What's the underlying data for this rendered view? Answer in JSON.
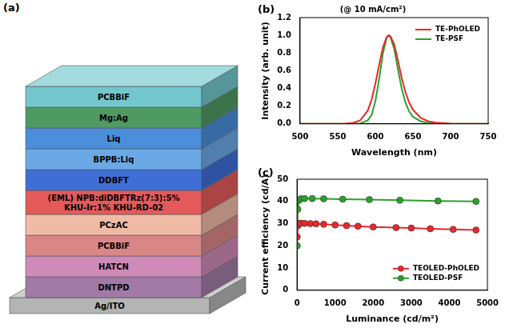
{
  "diagram": {
    "label": "(a)",
    "layers": [
      "PCBBiF",
      "Mg:Ag",
      "Liq",
      "BPPB:Liq",
      "DDBFT",
      "(EML) NPB:diDBFTRz(7:3):5% KHU-Ir:1% KHU-RD-02",
      "PCzAC",
      "PCBBiF",
      "HATCN",
      "DNTPD",
      "Ag/ITO"
    ]
  },
  "chart_data": [
    {
      "label": "(b)",
      "type": "line",
      "title": "(@ 10 mA/cm²)",
      "x_label": "Wavelength (nm)",
      "y_label": "Intensity (arb. unit)",
      "x": [
        500,
        540,
        560,
        570,
        580,
        590,
        595,
        600,
        605,
        610,
        615,
        618,
        620,
        625,
        630,
        635,
        640,
        645,
        650,
        660,
        670,
        680,
        700,
        750
      ],
      "series": [
        {
          "name": "TE-PhOLED",
          "color": "#e8282b",
          "values": [
            0,
            0,
            0.003,
            0.01,
            0.04,
            0.15,
            0.27,
            0.45,
            0.66,
            0.86,
            0.98,
            1.0,
            0.99,
            0.9,
            0.72,
            0.52,
            0.36,
            0.24,
            0.16,
            0.07,
            0.03,
            0.015,
            0.003,
            0
          ]
        },
        {
          "name": "TE-PSF",
          "color": "#2ca02c",
          "values": [
            0,
            0,
            0,
            0,
            0.005,
            0.04,
            0.1,
            0.25,
            0.5,
            0.79,
            0.97,
            1.0,
            0.98,
            0.85,
            0.62,
            0.4,
            0.24,
            0.14,
            0.08,
            0.03,
            0.01,
            0.005,
            0,
            0
          ]
        }
      ],
      "xlim": [
        500,
        750
      ],
      "xticks": [
        500,
        550,
        600,
        650,
        700,
        750
      ],
      "ylim": [
        0,
        1.2
      ],
      "yticks": [
        {
          "value": 0,
          "label": "0.0"
        },
        0.2,
        0.4,
        0.6,
        0.8,
        {
          "value": 1,
          "label": "1.0"
        },
        1.2
      ],
      "grid": false,
      "legend": "upper right"
    },
    {
      "label": "(c)",
      "type": "line",
      "x_label": "Luminance (cd/m²)",
      "y_label": "Current efficiency (cd/A)",
      "series": [
        {
          "name": "TEOLED-PhOLED",
          "color": "#e8282b",
          "marker": "circle",
          "x": [
            5,
            20,
            50,
            100,
            200,
            350,
            500,
            700,
            1000,
            1300,
            1600,
            2000,
            2600,
            3000,
            3500,
            4100,
            4700
          ],
          "values": [
            24,
            29,
            30,
            30.2,
            30.1,
            30,
            29.9,
            29.7,
            29.4,
            29.1,
            28.8,
            28.5,
            28.2,
            28,
            27.7,
            27.4,
            27.1
          ]
        },
        {
          "name": "TEOLED-PSF",
          "color": "#2ca02c",
          "marker": "circle",
          "x": [
            5,
            20,
            50,
            100,
            200,
            400,
            700,
            1200,
            1900,
            2700,
            3700,
            4700
          ],
          "values": [
            20,
            36.5,
            40.5,
            41.2,
            41.3,
            41.3,
            41.2,
            41,
            40.8,
            40.5,
            40.2,
            40
          ]
        }
      ],
      "xlim": [
        0,
        5000
      ],
      "xticks": [
        0,
        1000,
        2000,
        3000,
        4000,
        5000
      ],
      "ylim": [
        0,
        50
      ],
      "yticks": [
        0,
        10,
        20,
        30,
        40,
        50
      ],
      "grid": false,
      "legend": "lower right"
    }
  ]
}
